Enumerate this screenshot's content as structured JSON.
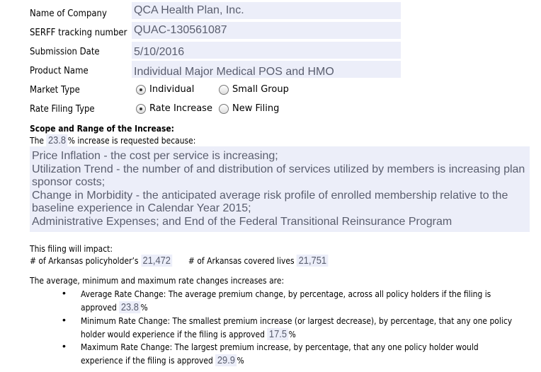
{
  "fields": [
    {
      "label": "Name of Company",
      "value": "QCA Health Plan, Inc."
    },
    {
      "label": "SERFF tracking number",
      "value": "QUAC-130561087"
    },
    {
      "label": "Submission Date",
      "value": "5/10/2016"
    },
    {
      "label": "Product Name",
      "value": "Individual Major Medical POS and HMO"
    }
  ],
  "market_type": {
    "label": "Market Type",
    "options": [
      "Individual",
      "Small Group"
    ],
    "selected": "Individual"
  },
  "rate_filing_type": {
    "label": "Rate Filing Type",
    "options": [
      "Rate Increase",
      "New Filing"
    ],
    "selected": "Rate Increase"
  },
  "scope": {
    "heading": "Scope and Range of the Increase:",
    "prefix": "The",
    "percent": "23.8",
    "suffix": "% increase is requested because:",
    "reasons": "Price Inflation - the cost per service is increasing;\nUtilization Trend - the number of and distribution of services utilized by members is increasing plan sponsor costs;\nChange in Morbidity - the anticipated average risk profile of enrolled membership relative to the baseline experience in Calendar Year 2015;\nAdministrative Expenses; and End of the Federal Transitional Reinsurance Program"
  },
  "impact": {
    "heading": "This filing will impact:",
    "policyholders_label": "# of Arkansas policyholder’s",
    "policyholders": "21,472",
    "lives_label": "# of Arkansas covered lives",
    "lives": "21,751"
  },
  "rates": {
    "heading": "The average, minimum and maximum rate changes increases are:",
    "items": [
      {
        "text": "Average Rate Change: The average premium change, by percentage, across all policy holders if the filing is approved",
        "value": "23.8",
        "unit": "%"
      },
      {
        "text": "Minimum Rate Change: The smallest premium increase (or largest decrease), by percentage, that any one policy holder would experience if the filing is approved",
        "value": "17.5",
        "unit": "%"
      },
      {
        "text": "Maximum Rate Change: The largest premium increase, by percentage, that any one policy holder would experience if the filing is approved",
        "value": "29.9",
        "unit": "%"
      }
    ]
  }
}
